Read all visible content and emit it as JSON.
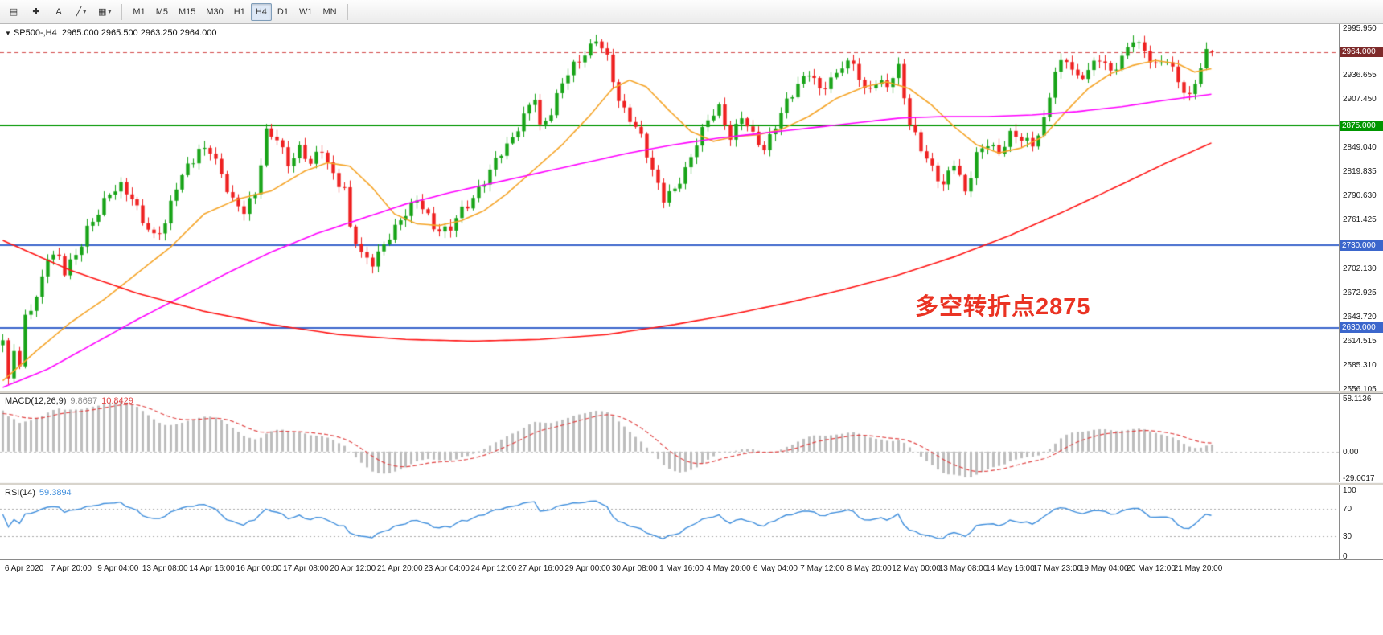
{
  "colors": {
    "candle_up": "#17a317",
    "candle_down": "#ee2020",
    "ma_fast": "#f5a427",
    "ma_mid": "#ff00ff",
    "ma_slow": "#ff1414",
    "level_green": "#009600",
    "level_blue": "#3b66cc",
    "bid_line": "#d24a4a",
    "bid_box": "#7e2a2a",
    "macd_bars": "#bdbdbd",
    "macd_value": "#8a8a8a",
    "macd_signal": "#e04545",
    "rsi_line": "#3f8edc",
    "annotation": "#ea3323"
  },
  "toolbar": {
    "tools": [
      {
        "name": "charts",
        "glyph": "▤",
        "dropdown": ""
      },
      {
        "name": "crosshair",
        "glyph": "✚",
        "dropdown": ""
      },
      {
        "name": "text-label",
        "glyph": "A",
        "dropdown": ""
      },
      {
        "name": "trendline",
        "glyph": "╱",
        "dropdown": "▾"
      },
      {
        "name": "shapes",
        "glyph": "▦",
        "dropdown": "▾"
      }
    ],
    "timeframes": [
      "M1",
      "M5",
      "M15",
      "M30",
      "H1",
      "H4",
      "D1",
      "W1",
      "MN"
    ],
    "active_timeframe": "H4"
  },
  "chart": {
    "marker": "▼",
    "symbol": "SP500-,H4",
    "ohlc_text": "2965.000 2965.500 2963.250 2964.000",
    "annotation": "多空转折点2875",
    "price_axis_ticks": [
      "2995.950",
      "2936.655",
      "2907.450",
      "2849.040",
      "2819.835",
      "2790.630",
      "2761.425",
      "2702.130",
      "2672.925",
      "2643.720",
      "2614.515",
      "2585.310",
      "2556.105"
    ]
  },
  "time_axis": {
    "labels": [
      "6 Apr 2020",
      "7 Apr 20:00",
      "9 Apr 04:00",
      "13 Apr 08:00",
      "14 Apr 16:00",
      "16 Apr 00:00",
      "17 Apr 08:00",
      "20 Apr 12:00",
      "21 Apr 20:00",
      "23 Apr 04:00",
      "24 Apr 12:00",
      "27 Apr 16:00",
      "29 Apr 00:00",
      "30 Apr 08:00",
      "1 May 16:00",
      "4 May 20:00",
      "6 May 04:00",
      "7 May 12:00",
      "8 May 20:00",
      "12 May 00:00",
      "13 May 08:00",
      "14 May 16:00",
      "17 May 23:00",
      "19 May 04:00",
      "20 May 12:00",
      "21 May 20:00"
    ]
  },
  "chart_data": {
    "type": "candlestick",
    "symbol": "SP500-",
    "timeframe": "H4",
    "current_ohlc": {
      "open": 2965.0,
      "high": 2965.5,
      "low": 2963.25,
      "close": 2964.0
    },
    "y_range": {
      "top": 2998,
      "bottom": 2554
    },
    "candle_count": 217,
    "price_anchors": [
      [
        0,
        2615
      ],
      [
        1,
        2565
      ],
      [
        2,
        2605
      ],
      [
        3,
        2580
      ],
      [
        4,
        2640
      ],
      [
        6,
        2668
      ],
      [
        8,
        2722
      ],
      [
        10,
        2712
      ],
      [
        11,
        2692
      ],
      [
        13,
        2718
      ],
      [
        15,
        2755
      ],
      [
        17,
        2770
      ],
      [
        19,
        2790
      ],
      [
        21,
        2802
      ],
      [
        23,
        2788
      ],
      [
        25,
        2762
      ],
      [
        27,
        2742
      ],
      [
        29,
        2752
      ],
      [
        31,
        2800
      ],
      [
        33,
        2832
      ],
      [
        35,
        2846
      ],
      [
        37,
        2840
      ],
      [
        39,
        2815
      ],
      [
        41,
        2788
      ],
      [
        43,
        2772
      ],
      [
        45,
        2792
      ],
      [
        47,
        2866
      ],
      [
        49,
        2858
      ],
      [
        51,
        2832
      ],
      [
        53,
        2850
      ],
      [
        55,
        2824
      ],
      [
        57,
        2844
      ],
      [
        59,
        2820
      ],
      [
        61,
        2800
      ],
      [
        62,
        2748
      ],
      [
        64,
        2716
      ],
      [
        66,
        2710
      ],
      [
        68,
        2732
      ],
      [
        71,
        2762
      ],
      [
        74,
        2782
      ],
      [
        77,
        2756
      ],
      [
        80,
        2750
      ],
      [
        83,
        2776
      ],
      [
        85,
        2802
      ],
      [
        88,
        2832
      ],
      [
        91,
        2858
      ],
      [
        93,
        2886
      ],
      [
        95,
        2912
      ],
      [
        96,
        2876
      ],
      [
        98,
        2892
      ],
      [
        100,
        2922
      ],
      [
        102,
        2948
      ],
      [
        104,
        2968
      ],
      [
        106,
        2979
      ],
      [
        108,
        2952
      ],
      [
        110,
        2906
      ],
      [
        112,
        2886
      ],
      [
        114,
        2862
      ],
      [
        116,
        2820
      ],
      [
        118,
        2784
      ],
      [
        120,
        2796
      ],
      [
        122,
        2826
      ],
      [
        124,
        2856
      ],
      [
        126,
        2876
      ],
      [
        128,
        2896
      ],
      [
        130,
        2866
      ],
      [
        132,
        2886
      ],
      [
        134,
        2860
      ],
      [
        136,
        2846
      ],
      [
        138,
        2876
      ],
      [
        140,
        2906
      ],
      [
        142,
        2926
      ],
      [
        144,
        2936
      ],
      [
        146,
        2916
      ],
      [
        148,
        2936
      ],
      [
        150,
        2950
      ],
      [
        152,
        2944
      ],
      [
        154,
        2916
      ],
      [
        156,
        2932
      ],
      [
        158,
        2924
      ],
      [
        160,
        2944
      ],
      [
        162,
        2876
      ],
      [
        164,
        2846
      ],
      [
        166,
        2826
      ],
      [
        168,
        2806
      ],
      [
        170,
        2826
      ],
      [
        172,
        2790
      ],
      [
        174,
        2846
      ],
      [
        176,
        2856
      ],
      [
        178,
        2836
      ],
      [
        180,
        2864
      ],
      [
        182,
        2862
      ],
      [
        184,
        2852
      ],
      [
        186,
        2882
      ],
      [
        188,
        2940
      ],
      [
        190,
        2952
      ],
      [
        192,
        2936
      ],
      [
        194,
        2946
      ],
      [
        196,
        2952
      ],
      [
        198,
        2936
      ],
      [
        200,
        2962
      ],
      [
        202,
        2982
      ],
      [
        204,
        2962
      ],
      [
        206,
        2946
      ],
      [
        208,
        2955
      ],
      [
        210,
        2930
      ],
      [
        212,
        2912
      ],
      [
        214,
        2944
      ],
      [
        215,
        2958
      ],
      [
        216,
        2964
      ]
    ],
    "hlines": [
      {
        "price": 2875,
        "color_key": "level_green",
        "label": "2875.000"
      },
      {
        "price": 2730,
        "color_key": "level_blue",
        "label": "2730.000"
      },
      {
        "price": 2630,
        "color_key": "level_blue",
        "label": "2630.000"
      }
    ],
    "bid": {
      "price": 2964,
      "label": "2964.000"
    },
    "ma_lines": [
      {
        "name": "ma-fast-orange",
        "color_key": "ma_fast",
        "points": [
          [
            0,
            2566
          ],
          [
            6,
            2602
          ],
          [
            12,
            2636
          ],
          [
            18,
            2664
          ],
          [
            24,
            2696
          ],
          [
            30,
            2728
          ],
          [
            36,
            2768
          ],
          [
            42,
            2786
          ],
          [
            48,
            2796
          ],
          [
            54,
            2820
          ],
          [
            58,
            2830
          ],
          [
            62,
            2826
          ],
          [
            66,
            2800
          ],
          [
            70,
            2768
          ],
          [
            74,
            2756
          ],
          [
            78,
            2754
          ],
          [
            82,
            2760
          ],
          [
            86,
            2772
          ],
          [
            90,
            2792
          ],
          [
            95,
            2822
          ],
          [
            100,
            2852
          ],
          [
            105,
            2888
          ],
          [
            109,
            2920
          ],
          [
            112,
            2930
          ],
          [
            115,
            2922
          ],
          [
            119,
            2894
          ],
          [
            123,
            2868
          ],
          [
            127,
            2856
          ],
          [
            131,
            2862
          ],
          [
            135,
            2864
          ],
          [
            139,
            2870
          ],
          [
            144,
            2886
          ],
          [
            149,
            2908
          ],
          [
            154,
            2922
          ],
          [
            158,
            2928
          ],
          [
            162,
            2920
          ],
          [
            166,
            2900
          ],
          [
            170,
            2874
          ],
          [
            174,
            2852
          ],
          [
            178,
            2842
          ],
          [
            182,
            2848
          ],
          [
            186,
            2862
          ],
          [
            190,
            2892
          ],
          [
            194,
            2920
          ],
          [
            198,
            2938
          ],
          [
            202,
            2948
          ],
          [
            206,
            2954
          ],
          [
            210,
            2950
          ],
          [
            213,
            2940
          ],
          [
            216,
            2944
          ]
        ]
      },
      {
        "name": "ma-mid-magenta",
        "color_key": "ma_mid",
        "points": [
          [
            0,
            2558
          ],
          [
            8,
            2580
          ],
          [
            16,
            2610
          ],
          [
            24,
            2640
          ],
          [
            32,
            2668
          ],
          [
            40,
            2696
          ],
          [
            48,
            2722
          ],
          [
            56,
            2744
          ],
          [
            64,
            2762
          ],
          [
            72,
            2780
          ],
          [
            80,
            2794
          ],
          [
            88,
            2806
          ],
          [
            96,
            2818
          ],
          [
            104,
            2830
          ],
          [
            112,
            2842
          ],
          [
            120,
            2852
          ],
          [
            128,
            2860
          ],
          [
            136,
            2866
          ],
          [
            144,
            2872
          ],
          [
            152,
            2878
          ],
          [
            160,
            2884
          ],
          [
            168,
            2886
          ],
          [
            176,
            2886
          ],
          [
            184,
            2888
          ],
          [
            192,
            2892
          ],
          [
            200,
            2898
          ],
          [
            208,
            2906
          ],
          [
            216,
            2913
          ]
        ]
      },
      {
        "name": "ma-slow-red",
        "color_key": "ma_slow",
        "points": [
          [
            0,
            2736
          ],
          [
            12,
            2700
          ],
          [
            24,
            2672
          ],
          [
            36,
            2650
          ],
          [
            48,
            2634
          ],
          [
            60,
            2622
          ],
          [
            72,
            2616
          ],
          [
            84,
            2614
          ],
          [
            96,
            2616
          ],
          [
            108,
            2622
          ],
          [
            120,
            2634
          ],
          [
            130,
            2646
          ],
          [
            140,
            2660
          ],
          [
            150,
            2676
          ],
          [
            160,
            2694
          ],
          [
            170,
            2716
          ],
          [
            180,
            2742
          ],
          [
            190,
            2772
          ],
          [
            200,
            2804
          ],
          [
            208,
            2830
          ],
          [
            216,
            2854
          ]
        ]
      }
    ],
    "macd": {
      "label": "MACD(12,26,9)",
      "value_main": "9.8697",
      "value_signal": "10.8429",
      "axis_ticks": [
        "58.1136",
        "0.00",
        "-29.0017"
      ],
      "y_range": {
        "top": 62,
        "bottom": -33
      },
      "params": [
        12,
        26,
        9
      ]
    },
    "rsi": {
      "label": "RSI(14)",
      "value": "59.3894",
      "axis_ticks": [
        "100",
        "70",
        "30",
        "0"
      ],
      "levels": [
        70,
        30
      ],
      "period": 14
    }
  }
}
